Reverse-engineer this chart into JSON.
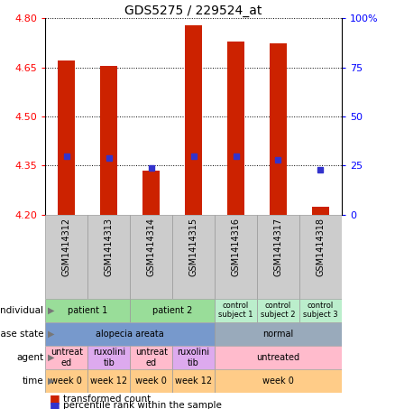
{
  "title": "GDS5275 / 229524_at",
  "samples": [
    "GSM1414312",
    "GSM1414313",
    "GSM1414314",
    "GSM1414315",
    "GSM1414316",
    "GSM1414317",
    "GSM1414318"
  ],
  "transformed_counts": [
    4.67,
    4.655,
    4.335,
    4.78,
    4.73,
    4.725,
    4.225
  ],
  "percentile_ranks": [
    30,
    29,
    24,
    30,
    30,
    28,
    23
  ],
  "y_min": 4.2,
  "y_max": 4.8,
  "y_ticks": [
    4.2,
    4.35,
    4.5,
    4.65,
    4.8
  ],
  "y2_ticks": [
    0,
    25,
    50,
    75,
    100
  ],
  "bar_color": "#cc2200",
  "dot_color": "#3333cc",
  "xlab_bg": "#cccccc",
  "individual_row": {
    "label": "individual",
    "groups": [
      {
        "text": "patient 1",
        "span": [
          0,
          2
        ],
        "color": "#99dd99"
      },
      {
        "text": "patient 2",
        "span": [
          2,
          4
        ],
        "color": "#99dd99"
      },
      {
        "text": "control\nsubject 1",
        "span": [
          4,
          5
        ],
        "color": "#bbeecc"
      },
      {
        "text": "control\nsubject 2",
        "span": [
          5,
          6
        ],
        "color": "#bbeecc"
      },
      {
        "text": "control\nsubject 3",
        "span": [
          6,
          7
        ],
        "color": "#bbeecc"
      }
    ]
  },
  "disease_state_row": {
    "label": "disease state",
    "groups": [
      {
        "text": "alopecia areata",
        "span": [
          0,
          4
        ],
        "color": "#7799cc"
      },
      {
        "text": "normal",
        "span": [
          4,
          7
        ],
        "color": "#99aabb"
      }
    ]
  },
  "agent_row": {
    "label": "agent",
    "groups": [
      {
        "text": "untreat\ned",
        "span": [
          0,
          1
        ],
        "color": "#ffbbcc"
      },
      {
        "text": "ruxolini\ntib",
        "span": [
          1,
          2
        ],
        "color": "#ddaaee"
      },
      {
        "text": "untreat\ned",
        "span": [
          2,
          3
        ],
        "color": "#ffbbcc"
      },
      {
        "text": "ruxolini\ntib",
        "span": [
          3,
          4
        ],
        "color": "#ddaaee"
      },
      {
        "text": "untreated",
        "span": [
          4,
          7
        ],
        "color": "#ffbbcc"
      }
    ]
  },
  "time_row": {
    "label": "time",
    "groups": [
      {
        "text": "week 0",
        "span": [
          0,
          1
        ],
        "color": "#ffcc88"
      },
      {
        "text": "week 12",
        "span": [
          1,
          2
        ],
        "color": "#ffcc88"
      },
      {
        "text": "week 0",
        "span": [
          2,
          3
        ],
        "color": "#ffcc88"
      },
      {
        "text": "week 12",
        "span": [
          3,
          4
        ],
        "color": "#ffcc88"
      },
      {
        "text": "week 0",
        "span": [
          4,
          7
        ],
        "color": "#ffcc88"
      }
    ]
  }
}
